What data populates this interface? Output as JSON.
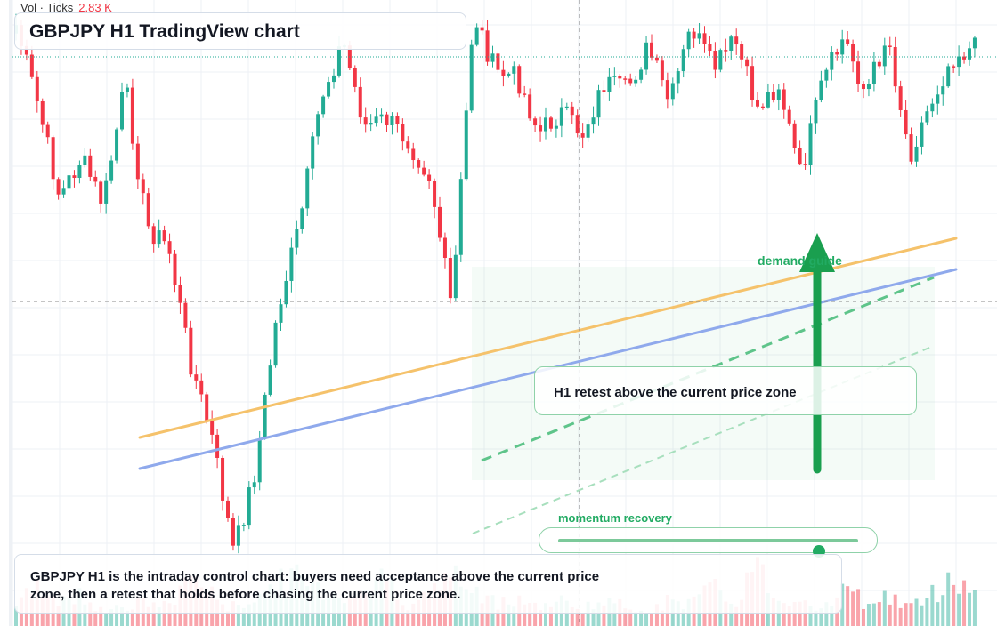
{
  "header": {
    "volume_label": "Vol · Ticks",
    "volume_value": "2.83 K"
  },
  "title": "GBPJPY H1 TradingView chart",
  "annotations": {
    "demand_label": "demand guide",
    "retest_text": "H1 retest above the current price zone",
    "momentum_label": "momentum recovery",
    "momentum_level": 0.87
  },
  "summary": "GBPJPY H1 is the intraday control chart: buyers need acceptance above the current price zone, then a retest that holds before chasing the current price zone.",
  "colors": {
    "up": "#22ab94",
    "down": "#f23645",
    "accent_green": "#22ab63",
    "orange_line": "#f5c26b",
    "blue_line": "#8fa9ec"
  },
  "chart_data": {
    "type": "candlestick",
    "symbol": "GBPJPY",
    "timeframe": "H1",
    "close_path": [
      18,
      130,
      260,
      205,
      270,
      100,
      300,
      330,
      490,
      600,
      760,
      640,
      420,
      300,
      120,
      40,
      160,
      150,
      180,
      230,
      420,
      0,
      85,
      90,
      170,
      140,
      170,
      100,
      110,
      50,
      130,
      20,
      80,
      40,
      135,
      100,
      230,
      100,
      35,
      115,
      30,
      200,
      125,
      60,
      50
    ],
    "volume_profile": [
      0.3,
      0.7,
      0.4,
      0.5,
      0.3,
      0.3,
      0.4,
      0.3,
      0.9,
      0.5,
      0.3,
      0.5,
      0.7,
      0.8,
      0.6,
      0.5,
      0.6,
      0.8,
      0.4,
      0.5,
      0.9,
      0.5,
      0.4,
      0.5,
      0.3,
      0.4,
      0.3,
      0.4,
      0.3,
      0.3,
      0.4,
      0.4,
      0.6,
      0.4,
      1.0,
      0.4,
      0.5,
      0.3,
      0.6,
      0.4,
      0.5,
      0.3,
      0.5,
      0.8,
      0.6
    ]
  }
}
